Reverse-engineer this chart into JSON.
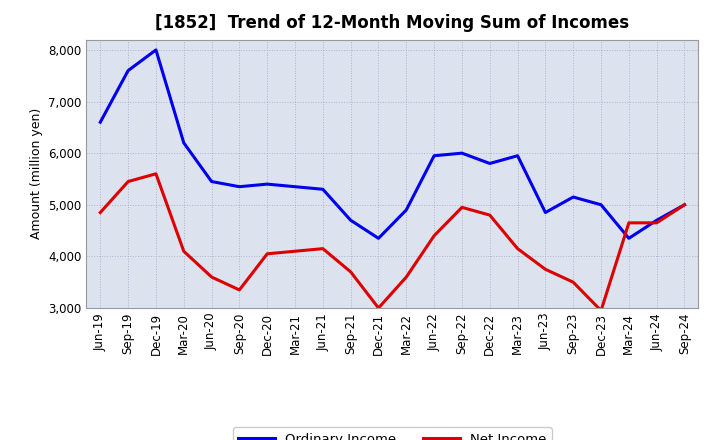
{
  "title": "[1852]  Trend of 12-Month Moving Sum of Incomes",
  "ylabel": "Amount (million yen)",
  "background_color": "#ffffff",
  "plot_background": "#dde3ee",
  "grid_color": "#aaaacc",
  "x_labels": [
    "Jun-19",
    "Sep-19",
    "Dec-19",
    "Mar-20",
    "Jun-20",
    "Sep-20",
    "Dec-20",
    "Mar-21",
    "Jun-21",
    "Sep-21",
    "Dec-21",
    "Mar-22",
    "Jun-22",
    "Sep-22",
    "Dec-22",
    "Mar-23",
    "Jun-23",
    "Sep-23",
    "Dec-23",
    "Mar-24",
    "Jun-24",
    "Sep-24"
  ],
  "ordinary_income": [
    6600,
    7600,
    8000,
    6200,
    5450,
    5350,
    5400,
    5350,
    5300,
    4700,
    4350,
    4900,
    5950,
    6000,
    5800,
    5950,
    4850,
    5150,
    5000,
    4350,
    4700,
    5000
  ],
  "net_income": [
    4850,
    5450,
    5600,
    4100,
    3600,
    3350,
    4050,
    4100,
    4150,
    3700,
    3000,
    3600,
    4400,
    4950,
    4800,
    4150,
    3750,
    3500,
    2950,
    4650,
    4650,
    5000
  ],
  "ordinary_color": "#0000ee",
  "net_color": "#dd0000",
  "ylim_min": 3000,
  "ylim_max": 8200,
  "yticks": [
    3000,
    4000,
    5000,
    6000,
    7000,
    8000
  ],
  "legend_labels": [
    "Ordinary Income",
    "Net Income"
  ],
  "line_width": 2.2,
  "title_fontsize": 12,
  "ylabel_fontsize": 9,
  "tick_fontsize": 8.5
}
